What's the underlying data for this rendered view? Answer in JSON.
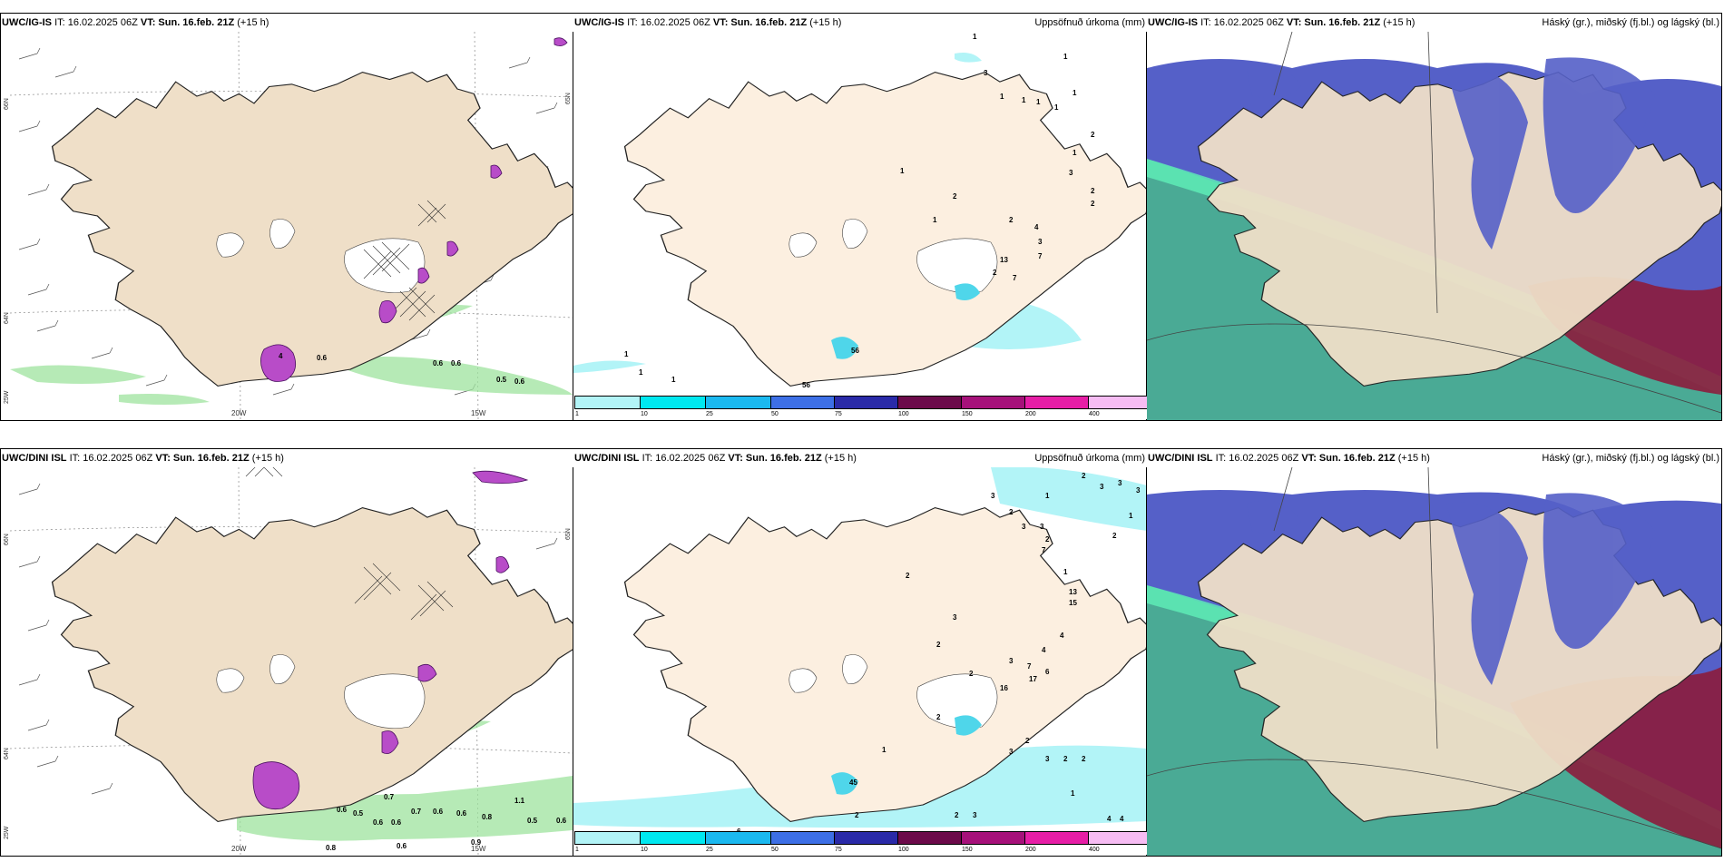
{
  "panels": [
    {
      "model": "UWC/IG-IS",
      "it": "IT: 16.02.2025 06Z",
      "vt": "VT: Sun. 16.feb. 21Z",
      "lead": "(+15 h)",
      "lon_labels": [
        "20W",
        "15W"
      ],
      "lat_labels": [
        "66N",
        "64N"
      ],
      "edge_lat_labels": [
        "25W",
        "65N"
      ],
      "values": [
        "0.6",
        "0.6",
        "0.6",
        "0.5",
        "0.6",
        "4"
      ]
    },
    {
      "model": "UWC/IG-IS",
      "it": "IT: 16.02.2025 06Z",
      "vt": "VT: Sun. 16.feb. 21Z",
      "lead": "(+15 h)",
      "title_right": "Uppsöfnuð úrkoma (mm)",
      "values": [
        "1",
        "1",
        "3",
        "1",
        "1",
        "1",
        "1",
        "1",
        "2",
        "1",
        "3",
        "2",
        "2",
        "1",
        "2",
        "2",
        "4",
        "3",
        "7",
        "13",
        "2",
        "7",
        "1",
        "1",
        "1",
        "1",
        "56"
      ],
      "colorbar_ticks": [
        "1",
        "10",
        "25",
        "50",
        "75",
        "100",
        "150",
        "200",
        "400"
      ]
    },
    {
      "model": "UWC/IG-IS",
      "it": "IT: 16.02.2025 06Z",
      "vt": "VT: Sun. 16.feb. 21Z",
      "lead": "(+15 h)",
      "title_right": "Háský (gr.), miðský (fj.bl.) og lágský (bl.)"
    },
    {
      "model": "UWC/DINI ISL",
      "it": "IT: 16.02.2025 06Z",
      "vt": "VT: Sun. 16.feb. 21Z",
      "lead": "(+15 h)",
      "lon_labels": [
        "20W",
        "15W"
      ],
      "lat_labels": [
        "66N",
        "64N"
      ],
      "edge_lat_labels": [
        "25W",
        "65N"
      ],
      "values": [
        "0.6",
        "0.5",
        "0.7",
        "0.6",
        "0.6",
        "0.7",
        "0.6",
        "0.6",
        "0.5",
        "0.6",
        "0.9",
        "0.8",
        "0.6",
        "1.1",
        "0.8"
      ]
    },
    {
      "model": "UWC/DINI ISL",
      "it": "IT: 16.02.2025 06Z",
      "vt": "VT: Sun. 16.feb. 21Z",
      "lead": "(+15 h)",
      "title_right": "Uppsöfnuð úrkoma (mm)",
      "values": [
        "2",
        "2",
        "3",
        "2",
        "3",
        "3",
        "3",
        "1",
        "1",
        "2",
        "3",
        "3",
        "2",
        "2",
        "7",
        "1",
        "13",
        "15",
        "2",
        "3",
        "4",
        "4",
        "2",
        "7",
        "6",
        "17",
        "16",
        "3",
        "2",
        "2",
        "2",
        "3",
        "3",
        "2",
        "2",
        "2",
        "2",
        "3",
        "4",
        "4",
        "1",
        "1",
        "6",
        "45"
      ],
      "colorbar_ticks": [
        "1",
        "10",
        "25",
        "50",
        "75",
        "100",
        "150",
        "200",
        "400"
      ]
    },
    {
      "model": "UWC/DINI ISL",
      "it": "IT: 16.02.2025 06Z",
      "vt": "VT: Sun. 16.feb. 21Z",
      "lead": "(+15 h)",
      "title_right": "Háský (gr.), miðský (fj.bl.) og lágský (bl.)"
    }
  ],
  "colorbar_colors": [
    "#b2f4f7",
    "#00e8f0",
    "#1bb9f0",
    "#3d6fe6",
    "#2a2aa8",
    "#6c0a4a",
    "#a6117a",
    "#e61ea6",
    "#f6bcf3"
  ]
}
